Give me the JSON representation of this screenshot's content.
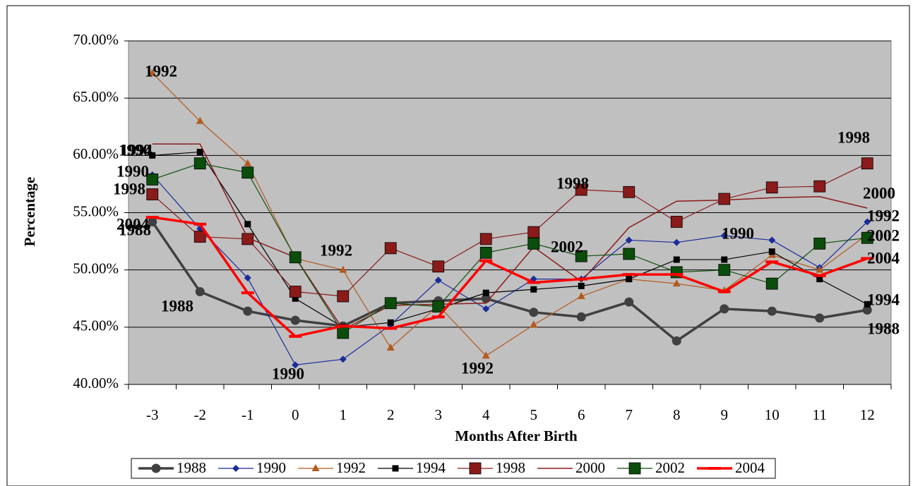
{
  "chart_data": {
    "type": "line",
    "x_label": "Months After Birth",
    "y_label": "Percentage",
    "categories": [
      "-3",
      "-2",
      "-1",
      "0",
      "1",
      "2",
      "3",
      "4",
      "5",
      "6",
      "7",
      "8",
      "9",
      "10",
      "11",
      "12"
    ],
    "ylim": [
      40,
      70
    ],
    "yticks": [
      {
        "value": 40,
        "label": "40.00%"
      },
      {
        "value": 45,
        "label": "45.00%"
      },
      {
        "value": 50,
        "label": "50.00%"
      },
      {
        "value": 55,
        "label": "55.00%"
      },
      {
        "value": 60,
        "label": "60.00%"
      },
      {
        "value": 65,
        "label": "65.00%"
      },
      {
        "value": 70,
        "label": "70.00%"
      }
    ],
    "grid": true,
    "legend": "bottom",
    "series": [
      {
        "name": "1988",
        "color": "#404040",
        "marker": "circle",
        "width": 3.5,
        "values": [
          54.2,
          48.1,
          46.4,
          45.6,
          45.1,
          47.1,
          47.3,
          47.5,
          46.3,
          45.9,
          47.2,
          43.8,
          46.6,
          46.4,
          45.8,
          46.5
        ]
      },
      {
        "name": "1990",
        "color": "#1a2b9b",
        "marker": "diamond",
        "width": 1.2,
        "values": [
          58.3,
          53.6,
          49.3,
          41.7,
          42.2,
          45.2,
          49.1,
          46.6,
          49.2,
          49.2,
          52.6,
          52.4,
          53.0,
          52.6,
          50.2,
          54.2
        ]
      },
      {
        "name": "1992",
        "color": "#b35a1f",
        "marker": "triangle",
        "width": 1.2,
        "values": [
          67.2,
          63.0,
          59.3,
          51.0,
          50.0,
          43.2,
          46.9,
          42.5,
          45.2,
          47.7,
          49.2,
          48.8,
          48.2,
          51.3,
          50.0,
          53.1
        ]
      },
      {
        "name": "1994",
        "color": "#000000",
        "marker": "square",
        "width": 1.2,
        "values": [
          60.0,
          60.3,
          54.0,
          47.5,
          45.0,
          45.4,
          46.6,
          48.0,
          48.3,
          48.6,
          49.2,
          50.9,
          50.9,
          51.6,
          49.2,
          47.0
        ]
      },
      {
        "name": "1998",
        "color": "#8b1a1a",
        "marker": "bigsquare",
        "width": 1.2,
        "values": [
          56.6,
          52.9,
          52.7,
          48.1,
          47.7,
          51.9,
          50.3,
          52.7,
          53.3,
          57.0,
          56.8,
          54.2,
          56.2,
          57.2,
          57.3,
          59.3
        ]
      },
      {
        "name": "2000",
        "color": "#8b1a1a",
        "marker": "none",
        "width": 1.5,
        "values": [
          61.0,
          61.0,
          52.8,
          51.1,
          44.8,
          46.9,
          47.0,
          47.1,
          52.0,
          49.0,
          53.7,
          56.0,
          56.1,
          56.3,
          56.4,
          55.4
        ]
      },
      {
        "name": "2002",
        "color": "#0b4d0b",
        "marker": "bigsquare",
        "width": 1.2,
        "values": [
          57.9,
          59.3,
          58.5,
          51.1,
          44.5,
          47.1,
          46.8,
          51.5,
          52.3,
          51.2,
          51.4,
          49.8,
          50.0,
          48.8,
          52.3,
          52.8
        ]
      },
      {
        "name": "2004",
        "color": "#ff0000",
        "marker": "dash",
        "width": 3.5,
        "values": [
          54.6,
          54.0,
          48.0,
          44.2,
          45.1,
          44.9,
          45.9,
          50.8,
          48.9,
          49.2,
          49.6,
          49.6,
          48.1,
          50.7,
          49.5,
          51.0
        ]
      }
    ],
    "annotations": [
      "1992",
      "1990",
      "1994",
      "1990",
      "1998",
      "2004",
      "1988",
      "1988",
      "1992",
      "1990",
      "1992",
      "1998",
      "2002",
      "1990",
      "1998",
      "2000",
      "1992",
      "2002",
      "2004",
      "1994",
      "1988"
    ]
  }
}
